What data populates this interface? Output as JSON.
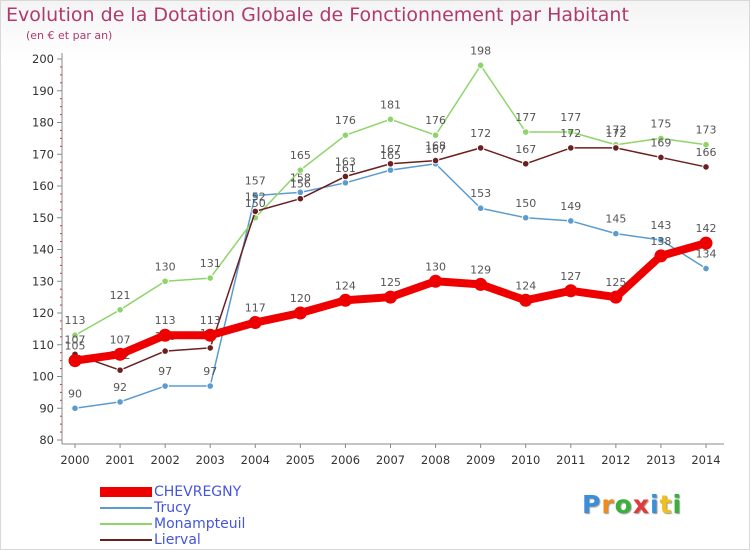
{
  "title": "Evolution de la Dotation Globale de Fonctionnement par Habitant",
  "subtitle": "(en € et par an)",
  "logo": {
    "text": "Proxiti"
  },
  "chart_data": {
    "type": "line",
    "x": [
      "2000",
      "2001",
      "2002",
      "2003",
      "2004",
      "2005",
      "2006",
      "2007",
      "2008",
      "2009",
      "2010",
      "2011",
      "2012",
      "2013",
      "2014"
    ],
    "y_ticks": [
      80,
      90,
      100,
      110,
      120,
      130,
      140,
      150,
      160,
      170,
      180,
      190,
      200
    ],
    "ylim": [
      80,
      200
    ],
    "grid": false,
    "legend_position": "bottom-left",
    "series": [
      {
        "name": "Trucy",
        "color": "#5a9bd0",
        "values": [
          90,
          92,
          97,
          97,
          157,
          158,
          161,
          165,
          167,
          153,
          150,
          149,
          145,
          143,
          134
        ],
        "labels": [
          "90",
          "92",
          "97",
          "97",
          "157",
          "158",
          "161",
          "165",
          "167",
          "153",
          "150",
          "149",
          "145",
          "143",
          "134"
        ]
      },
      {
        "name": "Monampteuil",
        "color": "#8fd46a",
        "values": [
          113,
          121,
          130,
          131,
          150,
          165,
          176,
          181,
          176,
          198,
          177,
          177,
          173,
          175,
          173
        ],
        "labels": [
          "113",
          "121",
          "130",
          "131",
          "150",
          "165",
          "176",
          "181",
          "176",
          "198",
          "177",
          "177",
          "173",
          "175",
          "173"
        ]
      },
      {
        "name": "Lierval",
        "color": "#6b1f1f",
        "values": [
          107,
          102,
          108,
          109,
          152,
          156,
          163,
          167,
          168,
          172,
          167,
          172,
          172,
          169,
          166
        ],
        "labels": [
          "107",
          "102",
          "108",
          "109",
          "152",
          "156",
          "163",
          "167",
          "168",
          "172",
          "167",
          "172",
          "172",
          "169",
          "166"
        ]
      },
      {
        "name": "CHEVREGNY",
        "color": "#ee0000",
        "values": [
          105,
          107,
          113,
          113,
          117,
          120,
          124,
          125,
          130,
          129,
          124,
          127,
          125,
          138,
          142
        ],
        "labels": [
          "105",
          "107",
          "113",
          "113",
          "117",
          "120",
          "124",
          "125",
          "130",
          "129",
          "124",
          "127",
          "125",
          "138",
          "142"
        ]
      }
    ]
  },
  "legend": [
    {
      "name": "CHEVREGNY",
      "color": "#ee0000",
      "text_color": "#4455dd",
      "thickness": 10
    },
    {
      "name": "Trucy",
      "color": "#5a9bd0",
      "text_color": "#4455dd",
      "thickness": 2
    },
    {
      "name": "Monampteuil",
      "color": "#8fd46a",
      "text_color": "#4455dd",
      "thickness": 2
    },
    {
      "name": "Lierval",
      "color": "#6b1f1f",
      "text_color": "#4455dd",
      "thickness": 2
    }
  ]
}
